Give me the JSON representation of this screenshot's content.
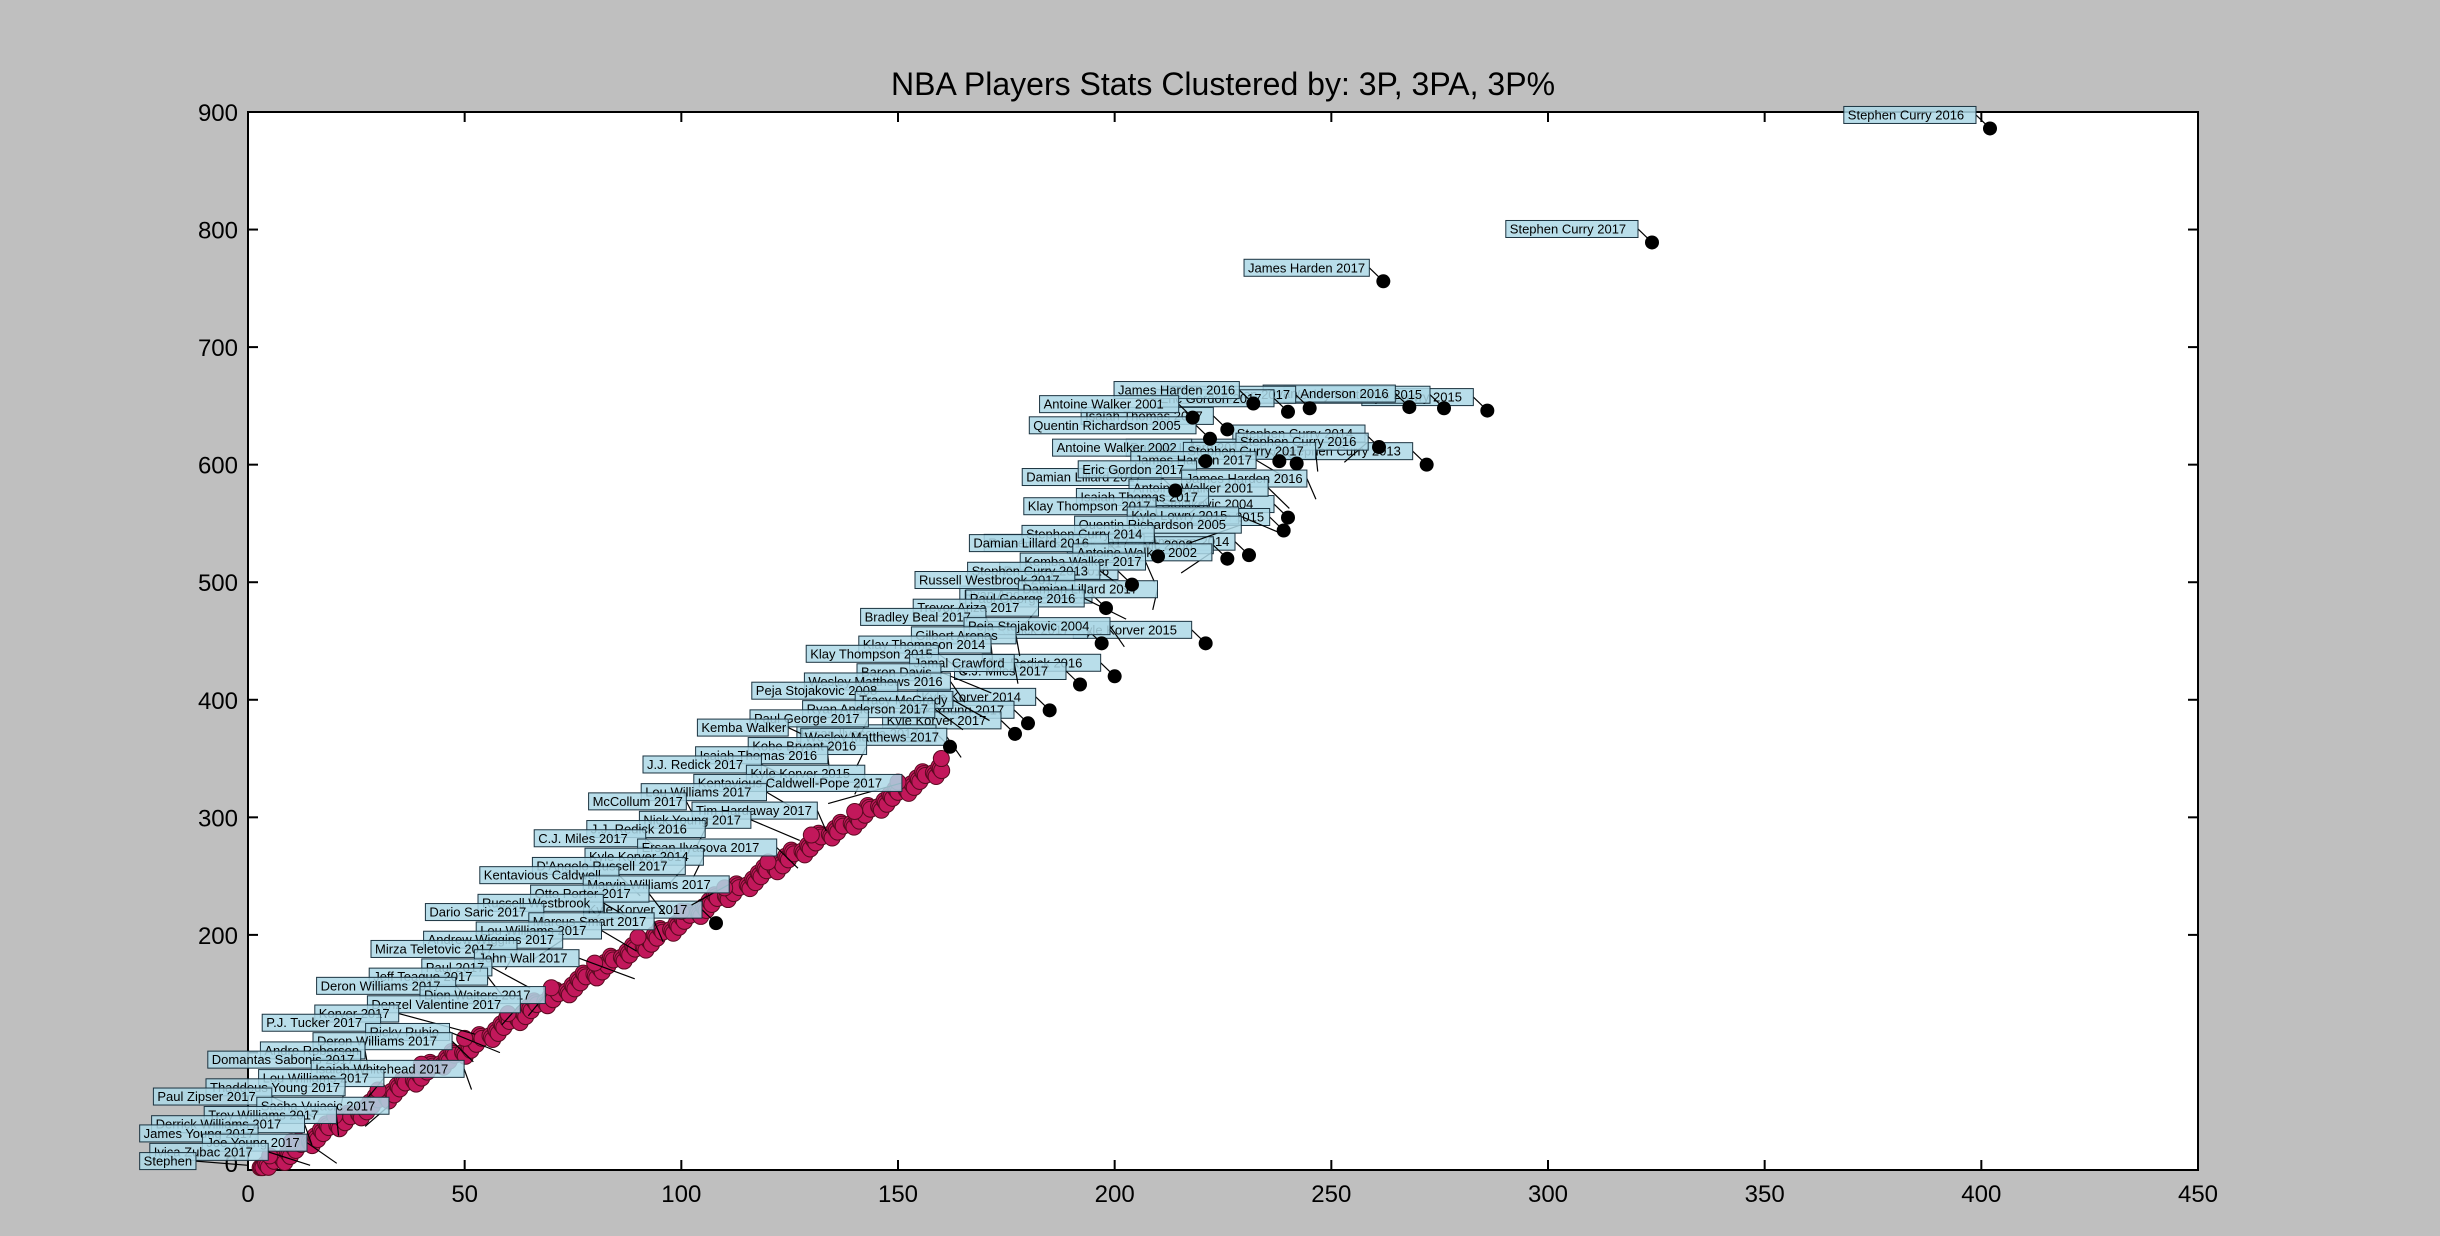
{
  "chart_data": {
    "type": "scatter",
    "title": "NBA Players Stats Clustered by: 3P, 3PA, 3P%",
    "xlabel": "",
    "ylabel": "",
    "xlim": [
      0,
      450
    ],
    "ylim": [
      0,
      900
    ],
    "xticks": [
      0,
      50,
      100,
      150,
      200,
      250,
      300,
      350,
      400,
      450
    ],
    "yticks": [
      200,
      300,
      400,
      500,
      600,
      700,
      800,
      900
    ],
    "ytick_labels_shown": [
      "200",
      "300",
      "400",
      "500",
      "600",
      "700",
      "800",
      "900"
    ],
    "xtick_labels_shown": [
      "0",
      "50",
      "100",
      "150",
      "200",
      "250",
      "300",
      "350",
      "400",
      "450"
    ],
    "y_zero_label": "0",
    "grid": false,
    "cluster_colors": {
      "low_volume": "#c2185b",
      "high_volume": "#000000",
      "label_box": "#add8e6"
    },
    "series": [
      {
        "cluster": "high_volume",
        "points": [
          {
            "x": 402,
            "y": 886,
            "label": "Stephen Curry 2016"
          },
          {
            "x": 324,
            "y": 789,
            "label": "Stephen Curry 2017"
          },
          {
            "x": 262,
            "y": 756,
            "label": "James Harden 2017"
          },
          {
            "x": 286,
            "y": 646,
            "label": "Kyle Lowry 2015"
          },
          {
            "x": 276,
            "y": 648,
            "label": "Wesley Matthews 2015"
          },
          {
            "x": 268,
            "y": 649,
            "label": "Ryan Anderson 2016"
          },
          {
            "x": 245,
            "y": 648,
            "label": "Klay Thompson 2017"
          },
          {
            "x": 240,
            "y": 645,
            "label": "Eric Gordon 2017"
          },
          {
            "x": 232,
            "y": 652,
            "label": "James Harden 2016"
          },
          {
            "x": 226,
            "y": 630,
            "label": "Isaiah Thomas 2017"
          },
          {
            "x": 218,
            "y": 640,
            "label": "Antoine Walker 2001"
          },
          {
            "x": 222,
            "y": 622,
            "label": "Quentin Richardson 2005"
          },
          {
            "x": 272,
            "y": 600,
            "label": "Stephen Curry 2013"
          },
          {
            "x": 261,
            "y": 615,
            "label": "Stephen Curry 2014"
          },
          {
            "x": 242,
            "y": 601,
            "label": "Kemba Walker 2017"
          },
          {
            "x": 238,
            "y": 603,
            "label": "Damian Lillard 2016"
          },
          {
            "x": 221,
            "y": 603,
            "label": "Antoine Walker 2002"
          },
          {
            "x": 214,
            "y": 578,
            "label": "Damian Lillard 2017"
          },
          {
            "x": 240,
            "y": 555,
            "label": "Peja Stojakovic 2004"
          },
          {
            "x": 239,
            "y": 544,
            "label": "Klay Thompson 2015"
          },
          {
            "x": 231,
            "y": 523,
            "label": "Klay Thompson 2014"
          },
          {
            "x": 226,
            "y": 520,
            "label": "Peja Stojakovic 2008"
          },
          {
            "x": 221,
            "y": 448,
            "label": "Kyle Korver 2015"
          },
          {
            "x": 210,
            "y": 522,
            "label": "Russell Westbrook 2017"
          },
          {
            "x": 204,
            "y": 498,
            "label": "Paul George 2016"
          },
          {
            "x": 198,
            "y": 478,
            "label": "Ryan Anderson 2017"
          },
          {
            "x": 200,
            "y": 420,
            "label": "J.J. Redick 2016"
          },
          {
            "x": 197,
            "y": 448,
            "label": "J.J. Redick 2017"
          },
          {
            "x": 192,
            "y": 413,
            "label": "C.J. Miles 2017"
          },
          {
            "x": 185,
            "y": 391,
            "label": "Kyle Korver 2014"
          },
          {
            "x": 180,
            "y": 380,
            "label": "Nick Young 2017"
          },
          {
            "x": 177,
            "y": 371,
            "label": "Kyle Korver 2017"
          },
          {
            "x": 162,
            "y": 360,
            "label": "Ersan Ilyasova 2017"
          },
          {
            "x": 108,
            "y": 210,
            "label": "Kyle Korver 2017"
          }
        ]
      },
      {
        "cluster": "low_volume",
        "points": [
          {
            "x": 160,
            "y": 350
          },
          {
            "x": 150,
            "y": 330
          },
          {
            "x": 140,
            "y": 305
          },
          {
            "x": 130,
            "y": 285
          },
          {
            "x": 120,
            "y": 262
          },
          {
            "x": 110,
            "y": 240
          },
          {
            "x": 100,
            "y": 220
          },
          {
            "x": 90,
            "y": 198
          },
          {
            "x": 80,
            "y": 176
          },
          {
            "x": 70,
            "y": 155
          },
          {
            "x": 60,
            "y": 133
          },
          {
            "x": 50,
            "y": 112
          },
          {
            "x": 40,
            "y": 90
          },
          {
            "x": 30,
            "y": 68
          },
          {
            "x": 20,
            "y": 46
          },
          {
            "x": 10,
            "y": 24
          },
          {
            "x": 5,
            "y": 12
          }
        ]
      }
    ],
    "annotations": [
      "Stephen Curry 2016",
      "Stephen Curry 2017",
      "James Harden 2017",
      "Eric Gordon 2017",
      "James Harden 2016",
      "Antoine Walker 2001",
      "Isaiah Thomas 2017",
      "Klay Thompson 2017",
      "Kyle Lowry 2015",
      "Quentin Richardson 2005",
      "Stephen Curry 2014",
      "Damian Lillard 2016",
      "Antoine Walker 2002",
      "Kemba Walker 2017",
      "Stephen Curry 2013",
      "Russell Westbrook 2017",
      "Damian Lillard 2017",
      "Paul George 2016",
      "Trevor Ariza 2017",
      "Bradley Beal 2017",
      "Peja Stojakovic 2004",
      "Gilbert Arenas",
      "Klay Thompson 2014",
      "Klay Thompson 2015",
      "Jamal Crawford",
      "Baron Davis",
      "Wesley Matthews 2016",
      "Peja Stojakovic 2008",
      "Tracy McGrady",
      "Ryan Anderson 2017",
      "Paul George 2017",
      "Kemba Walker",
      "Wesley Matthews 2017",
      "Kobe Bryant 2016",
      "Isaiah Thomas 2016",
      "J.J. Redick 2017",
      "Kyle Korver 2015",
      "Kentavious Caldwell-Pope 2017",
      "Lou Williams 2017",
      "McCollum 2017",
      "Tim Hardaway 2017",
      "Nick Young 2017",
      "J.J. Redick 2016",
      "C.J. Miles 2017",
      "Ersan Ilyasova 2017",
      "Kyle Korver 2014",
      "D'Angelo Russell 2017",
      "Kentavious Caldwell",
      "Marvin Williams 2017",
      "Otto Porter 2017",
      "Russell Westbrook",
      "Dario Saric 2017",
      "Marcus Smart 2017",
      "Lou Williams 2017",
      "Andrew Wiggins 2017",
      "Mirza Teletovic 2017",
      "John Wall 2017",
      "Paul 2017",
      "Jeff Teague 2017",
      "Deron Williams 2017",
      "Dion Waiters 2017",
      "Denzel Valentine 2017",
      "Korver 2017",
      "P.J. Tucker 2017",
      "Ricky Rubio",
      "Deron Williams 2017",
      "Andre Roberson",
      "Domantas Sabonis 2017",
      "Isaiah Whitehead 2017",
      "Lou Williams 2017",
      "Thaddeus Young 2017",
      "Paul Zipser 2017",
      "Sasha Vujacic 2017",
      "Troy Williams 2017",
      "Derrick Williams 2017",
      "James Young 2017",
      "Joe Young 2017",
      "Ivica Zubac 2017",
      "Stephen"
    ]
  }
}
